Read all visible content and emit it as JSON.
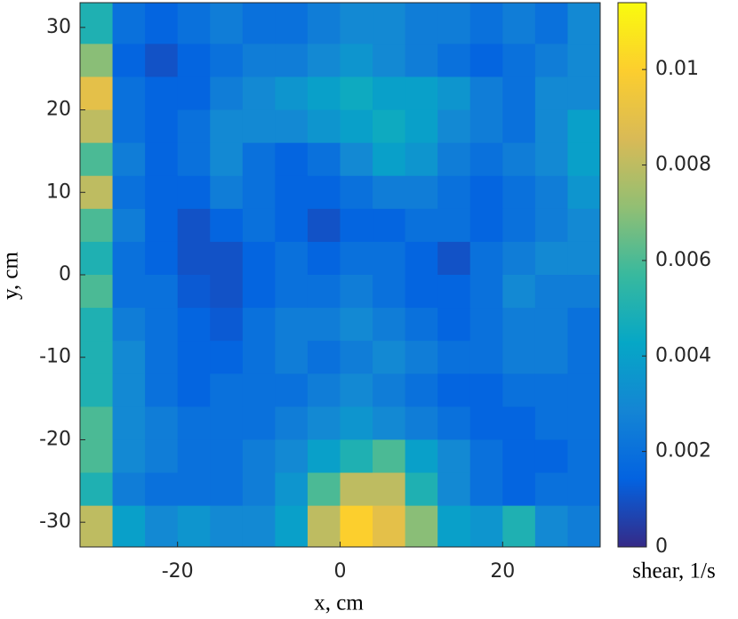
{
  "chart_data": {
    "type": "heatmap",
    "colormap": "parula",
    "xlabel": "x, cm",
    "ylabel": "y, cm",
    "colorbar_label": "shear, 1/s",
    "xlim": [
      -32,
      32
    ],
    "ylim": [
      -33,
      33
    ],
    "clim": [
      0,
      0.0114
    ],
    "xticks": [
      -20,
      0,
      20
    ],
    "yticks": [
      -30,
      -20,
      -10,
      0,
      10,
      20,
      30
    ],
    "cticks": [
      0,
      0.002,
      0.004,
      0.006,
      0.008,
      0.01
    ],
    "x": [
      -30,
      -26,
      -22,
      -18,
      -14,
      -10,
      -6,
      -2,
      2,
      6,
      10,
      14,
      18,
      22,
      26,
      30
    ],
    "y": [
      30,
      26,
      22,
      18,
      14,
      10,
      6,
      2,
      -2,
      -6,
      -10,
      -14,
      -18,
      -22,
      -26,
      -30
    ],
    "z": [
      [
        0.005,
        0.002,
        0.0015,
        0.002,
        0.0025,
        0.002,
        0.002,
        0.0025,
        0.003,
        0.003,
        0.0025,
        0.0025,
        0.002,
        0.0025,
        0.002,
        0.003
      ],
      [
        0.007,
        0.0015,
        0.001,
        0.0015,
        0.002,
        0.0025,
        0.0025,
        0.003,
        0.0035,
        0.003,
        0.0025,
        0.002,
        0.0015,
        0.002,
        0.0025,
        0.003
      ],
      [
        0.009,
        0.002,
        0.0015,
        0.0015,
        0.0025,
        0.003,
        0.0035,
        0.004,
        0.0045,
        0.004,
        0.004,
        0.0035,
        0.0025,
        0.002,
        0.003,
        0.003
      ],
      [
        0.008,
        0.002,
        0.0015,
        0.002,
        0.003,
        0.003,
        0.003,
        0.0035,
        0.004,
        0.0045,
        0.004,
        0.003,
        0.0025,
        0.002,
        0.003,
        0.004
      ],
      [
        0.006,
        0.0025,
        0.0015,
        0.002,
        0.003,
        0.002,
        0.0015,
        0.002,
        0.003,
        0.004,
        0.0035,
        0.0025,
        0.002,
        0.0025,
        0.003,
        0.004
      ],
      [
        0.008,
        0.002,
        0.0015,
        0.0015,
        0.0025,
        0.002,
        0.0015,
        0.0015,
        0.002,
        0.0025,
        0.0025,
        0.002,
        0.0015,
        0.002,
        0.0025,
        0.0035
      ],
      [
        0.006,
        0.0025,
        0.0015,
        0.001,
        0.0015,
        0.002,
        0.0015,
        0.001,
        0.0015,
        0.0015,
        0.002,
        0.002,
        0.0015,
        0.002,
        0.0025,
        0.003
      ],
      [
        0.005,
        0.002,
        0.0015,
        0.001,
        0.001,
        0.0015,
        0.002,
        0.0015,
        0.002,
        0.002,
        0.0015,
        0.001,
        0.002,
        0.0025,
        0.003,
        0.003
      ],
      [
        0.006,
        0.002,
        0.002,
        0.0012,
        0.001,
        0.0015,
        0.002,
        0.002,
        0.0025,
        0.002,
        0.0015,
        0.0015,
        0.002,
        0.003,
        0.0025,
        0.0025
      ],
      [
        0.005,
        0.0025,
        0.002,
        0.0015,
        0.0012,
        0.002,
        0.0025,
        0.0025,
        0.003,
        0.0025,
        0.002,
        0.0015,
        0.002,
        0.0025,
        0.0025,
        0.002
      ],
      [
        0.005,
        0.003,
        0.002,
        0.0015,
        0.0015,
        0.002,
        0.0025,
        0.002,
        0.0025,
        0.003,
        0.0025,
        0.002,
        0.002,
        0.0025,
        0.0025,
        0.002
      ],
      [
        0.005,
        0.003,
        0.002,
        0.0015,
        0.002,
        0.002,
        0.002,
        0.0025,
        0.003,
        0.0025,
        0.002,
        0.0015,
        0.0015,
        0.002,
        0.002,
        0.002
      ],
      [
        0.006,
        0.003,
        0.0025,
        0.002,
        0.002,
        0.002,
        0.0025,
        0.003,
        0.0035,
        0.003,
        0.0025,
        0.002,
        0.0015,
        0.0015,
        0.002,
        0.002
      ],
      [
        0.006,
        0.003,
        0.0025,
        0.002,
        0.002,
        0.0025,
        0.003,
        0.004,
        0.005,
        0.006,
        0.004,
        0.003,
        0.002,
        0.0015,
        0.0015,
        0.002
      ],
      [
        0.005,
        0.0025,
        0.002,
        0.002,
        0.002,
        0.0025,
        0.0035,
        0.006,
        0.008,
        0.008,
        0.005,
        0.003,
        0.002,
        0.0015,
        0.002,
        0.002
      ],
      [
        0.008,
        0.004,
        0.003,
        0.0035,
        0.003,
        0.003,
        0.004,
        0.008,
        0.01,
        0.009,
        0.007,
        0.004,
        0.0035,
        0.005,
        0.003,
        0.0025
      ]
    ]
  }
}
